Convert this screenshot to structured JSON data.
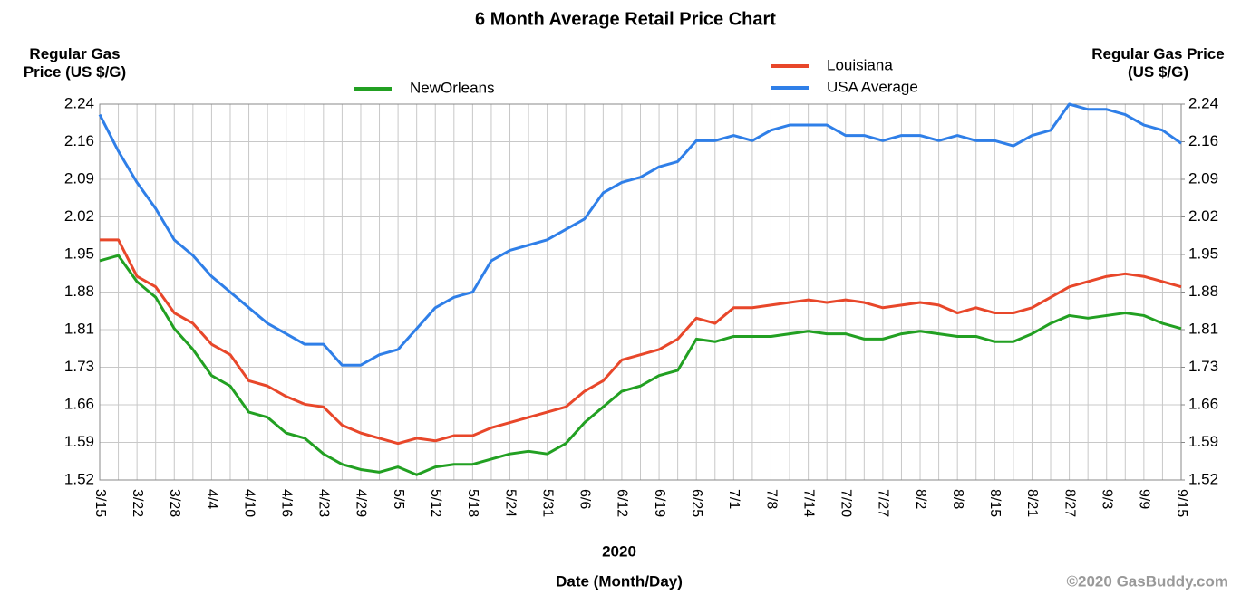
{
  "chart_data": {
    "type": "line",
    "title": "6 Month Average Retail Price Chart",
    "y_label": "Regular Gas Price (US $/G)",
    "y2_label": "Regular Gas Price (US $/G)",
    "x_label": "Date (Month/Day)",
    "x_year": "2020",
    "credit": "©2020 GasBuddy.com",
    "categories": [
      "3/15",
      null,
      "3/22",
      null,
      "3/28",
      null,
      "4/4",
      null,
      "4/10",
      null,
      "4/16",
      null,
      "4/23",
      null,
      "4/29",
      null,
      "5/5",
      null,
      "5/12",
      null,
      "5/18",
      null,
      "5/24",
      null,
      "5/31",
      null,
      "6/6",
      null,
      "6/12",
      null,
      "6/19",
      null,
      "6/25",
      null,
      "7/1",
      null,
      "7/8",
      null,
      "7/14",
      null,
      "7/20",
      null,
      "7/27",
      null,
      "8/2",
      null,
      "8/8",
      null,
      "8/15",
      null,
      "8/21",
      null,
      "8/27",
      null,
      "9/3",
      null,
      "9/9",
      null,
      "9/15"
    ],
    "ylim": [
      1.52,
      2.24
    ],
    "yticks": [
      {
        "value": 1.52,
        "label": "1.52"
      },
      {
        "value": 1.592,
        "label": "1.59"
      },
      {
        "value": 1.664,
        "label": "1.66"
      },
      {
        "value": 1.736,
        "label": "1.73"
      },
      {
        "value": 1.808,
        "label": "1.81"
      },
      {
        "value": 1.88,
        "label": "1.88"
      },
      {
        "value": 1.952,
        "label": "1.95"
      },
      {
        "value": 2.024,
        "label": "2.02"
      },
      {
        "value": 2.096,
        "label": "2.09"
      },
      {
        "value": 2.168,
        "label": "2.16"
      },
      {
        "value": 2.24,
        "label": "2.24"
      }
    ],
    "y2lim": [
      1.52,
      2.24
    ],
    "y2ticks": [
      {
        "value": 1.52,
        "label": "1.52"
      },
      {
        "value": 1.592,
        "label": "1.59"
      },
      {
        "value": 1.664,
        "label": "1.66"
      },
      {
        "value": 1.736,
        "label": "1.73"
      },
      {
        "value": 1.808,
        "label": "1.81"
      },
      {
        "value": 1.88,
        "label": "1.88"
      },
      {
        "value": 1.952,
        "label": "1.95"
      },
      {
        "value": 2.024,
        "label": "2.02"
      },
      {
        "value": 2.096,
        "label": "2.09"
      },
      {
        "value": 2.168,
        "label": "2.16"
      },
      {
        "value": 2.24,
        "label": "2.24"
      }
    ],
    "grid": true,
    "series": [
      {
        "name": "NewOrleans",
        "color": "#22a022",
        "values": [
          1.94,
          1.95,
          1.9,
          1.87,
          1.81,
          1.77,
          1.72,
          1.7,
          1.65,
          1.64,
          1.61,
          1.6,
          1.57,
          1.55,
          1.54,
          1.535,
          1.545,
          1.53,
          1.545,
          1.55,
          1.55,
          1.56,
          1.57,
          1.575,
          1.57,
          1.59,
          1.63,
          1.66,
          1.69,
          1.7,
          1.72,
          1.73,
          1.79,
          1.785,
          1.795,
          1.795,
          1.795,
          1.8,
          1.805,
          1.8,
          1.8,
          1.79,
          1.79,
          1.8,
          1.805,
          1.8,
          1.795,
          1.795,
          1.785,
          1.785,
          1.8,
          1.82,
          1.835,
          1.83,
          1.835,
          1.84,
          1.835,
          1.82,
          1.81
        ]
      },
      {
        "name": "Louisiana",
        "color": "#e8472a",
        "values": [
          1.98,
          1.98,
          1.91,
          1.89,
          1.84,
          1.82,
          1.78,
          1.76,
          1.71,
          1.7,
          1.68,
          1.665,
          1.66,
          1.625,
          1.61,
          1.6,
          1.59,
          1.6,
          1.595,
          1.605,
          1.605,
          1.62,
          1.63,
          1.64,
          1.65,
          1.66,
          1.69,
          1.71,
          1.75,
          1.76,
          1.77,
          1.79,
          1.83,
          1.82,
          1.85,
          1.85,
          1.855,
          1.86,
          1.865,
          1.86,
          1.865,
          1.86,
          1.85,
          1.855,
          1.86,
          1.855,
          1.84,
          1.85,
          1.84,
          1.84,
          1.85,
          1.87,
          1.89,
          1.9,
          1.91,
          1.915,
          1.91,
          1.9,
          1.89
        ]
      },
      {
        "name": "USA Average",
        "color": "#2f7fe8",
        "values": [
          2.22,
          2.15,
          2.09,
          2.04,
          1.98,
          1.95,
          1.91,
          1.88,
          1.85,
          1.82,
          1.8,
          1.78,
          1.78,
          1.74,
          1.74,
          1.76,
          1.77,
          1.81,
          1.85,
          1.87,
          1.88,
          1.94,
          1.96,
          1.97,
          1.98,
          2.0,
          2.02,
          2.07,
          2.09,
          2.1,
          2.12,
          2.13,
          2.17,
          2.17,
          2.18,
          2.17,
          2.19,
          2.2,
          2.2,
          2.2,
          2.18,
          2.18,
          2.17,
          2.18,
          2.18,
          2.17,
          2.18,
          2.17,
          2.17,
          2.16,
          2.18,
          2.19,
          2.24,
          2.23,
          2.23,
          2.22,
          2.2,
          2.19,
          2.165
        ]
      }
    ]
  }
}
